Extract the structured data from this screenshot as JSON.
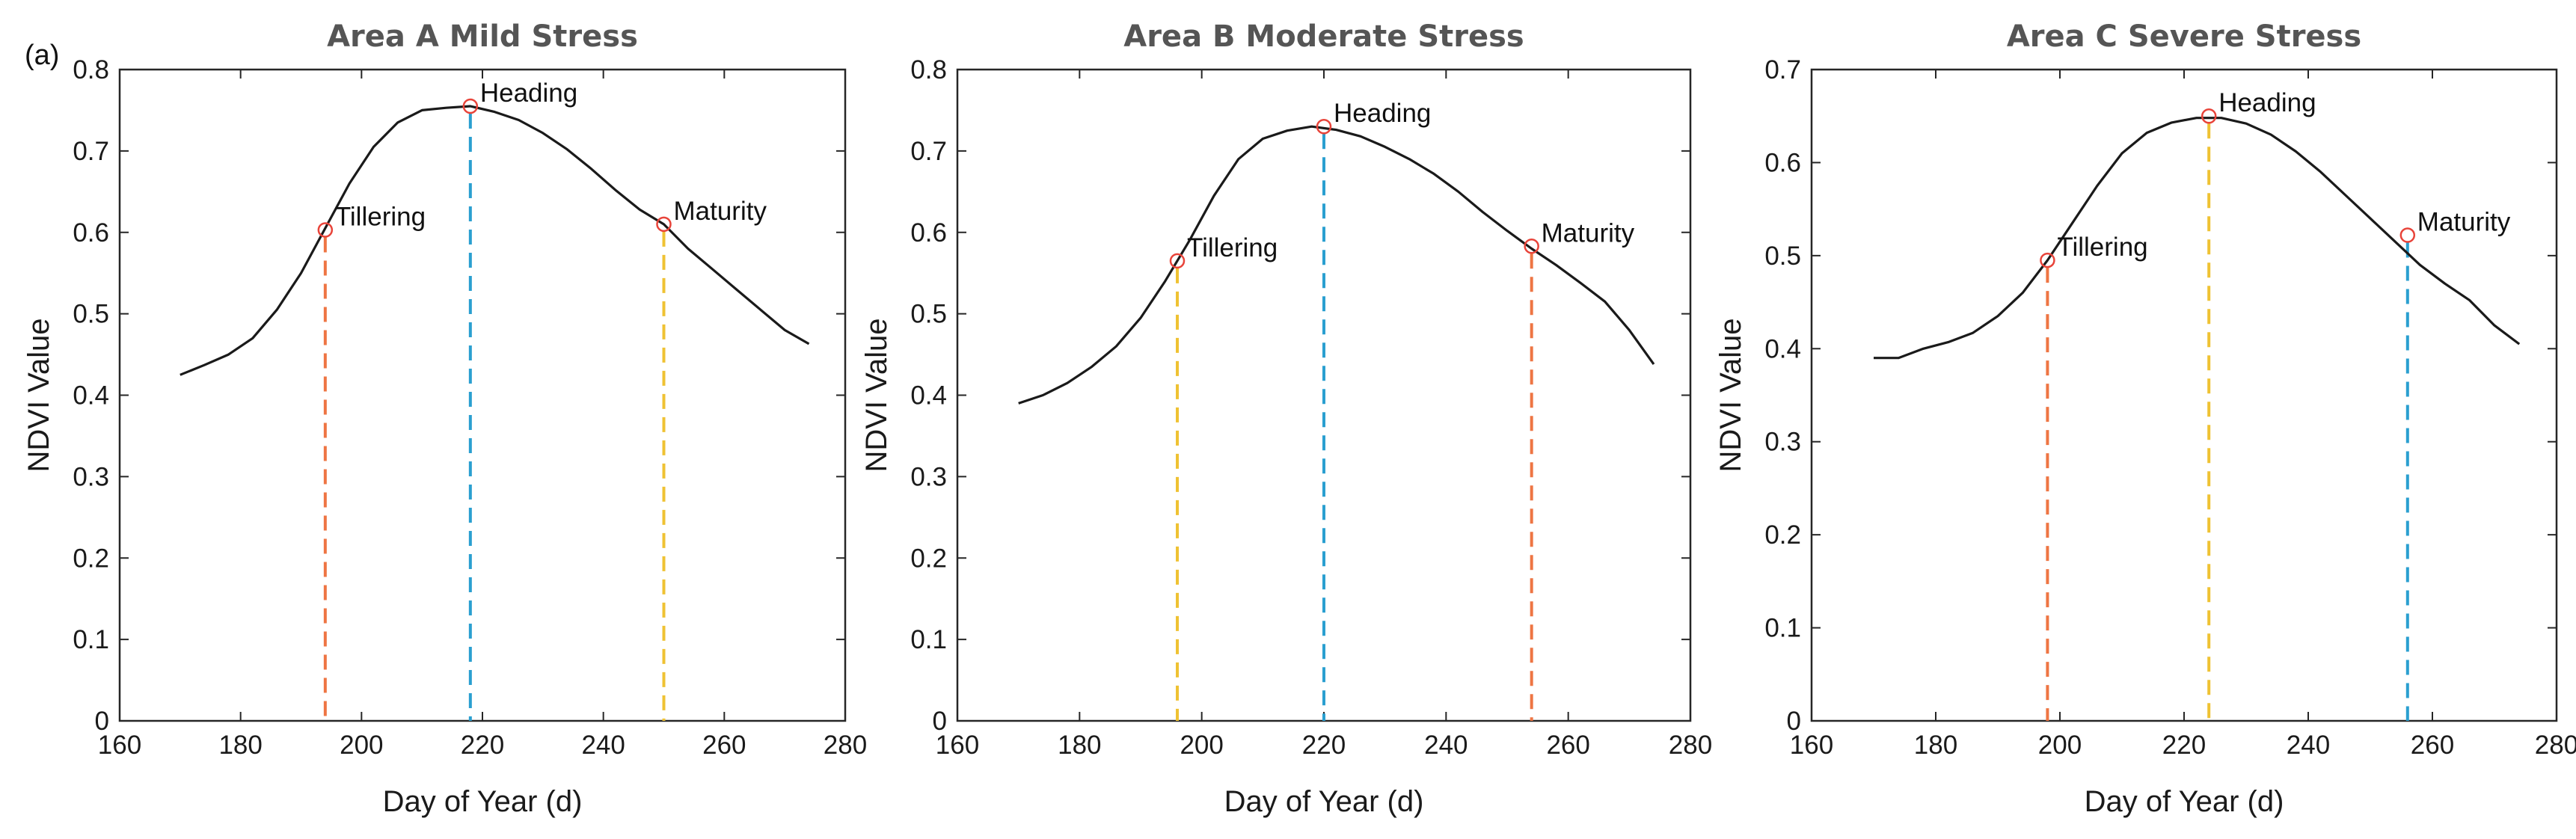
{
  "panel_label": "(a)",
  "colors": {
    "curve": "#1a1a1a",
    "marker": "#e8443a",
    "orange": "#ee7543",
    "blue": "#2a9fd0",
    "yellow": "#efc233"
  },
  "chart_data": [
    {
      "type": "line",
      "title": "Area A  Mild Stress",
      "xlabel": "Day of Year (d)",
      "ylabel": "NDVI Value",
      "xlim": [
        160,
        280
      ],
      "ylim": [
        0,
        0.8
      ],
      "xticks": [
        160,
        180,
        200,
        220,
        240,
        260,
        280
      ],
      "yticks": [
        0,
        0.1,
        0.2,
        0.3,
        0.4,
        0.5,
        0.6,
        0.7,
        0.8
      ],
      "series": [
        {
          "name": "NDVI",
          "x": [
            170,
            174,
            178,
            182,
            186,
            190,
            194,
            198,
            202,
            206,
            210,
            214,
            218,
            222,
            226,
            230,
            234,
            238,
            242,
            246,
            250,
            254,
            258,
            262,
            266,
            270,
            274
          ],
          "y": [
            0.425,
            0.437,
            0.45,
            0.47,
            0.505,
            0.55,
            0.605,
            0.66,
            0.705,
            0.735,
            0.75,
            0.753,
            0.755,
            0.748,
            0.738,
            0.722,
            0.702,
            0.678,
            0.652,
            0.628,
            0.61,
            0.58,
            0.555,
            0.53,
            0.505,
            0.48,
            0.463
          ]
        }
      ],
      "stages": [
        {
          "label": "Tillering",
          "x": 194,
          "y": 0.603,
          "color": "#ee7543"
        },
        {
          "label": "Heading",
          "x": 218,
          "y": 0.755,
          "color": "#2a9fd0"
        },
        {
          "label": "Maturity",
          "x": 250,
          "y": 0.61,
          "color": "#efc233"
        }
      ]
    },
    {
      "type": "line",
      "title": "Area B  Moderate Stress",
      "xlabel": "Day of Year (d)",
      "ylabel": "NDVI Value",
      "xlim": [
        160,
        280
      ],
      "ylim": [
        0,
        0.8
      ],
      "xticks": [
        160,
        180,
        200,
        220,
        240,
        260,
        280
      ],
      "yticks": [
        0,
        0.1,
        0.2,
        0.3,
        0.4,
        0.5,
        0.6,
        0.7,
        0.8
      ],
      "series": [
        {
          "name": "NDVI",
          "x": [
            170,
            174,
            178,
            182,
            186,
            190,
            194,
            198,
            202,
            206,
            210,
            214,
            218,
            222,
            226,
            230,
            234,
            238,
            242,
            246,
            250,
            254,
            258,
            262,
            266,
            270,
            274
          ],
          "y": [
            0.39,
            0.4,
            0.415,
            0.435,
            0.46,
            0.495,
            0.54,
            0.59,
            0.645,
            0.69,
            0.715,
            0.725,
            0.73,
            0.726,
            0.718,
            0.705,
            0.69,
            0.672,
            0.65,
            0.625,
            0.602,
            0.58,
            0.56,
            0.538,
            0.515,
            0.48,
            0.438
          ]
        }
      ],
      "stages": [
        {
          "label": "Tillering",
          "x": 196,
          "y": 0.565,
          "color": "#efc233"
        },
        {
          "label": "Heading",
          "x": 220,
          "y": 0.73,
          "color": "#2a9fd0"
        },
        {
          "label": "Maturity",
          "x": 254,
          "y": 0.583,
          "color": "#ee7543"
        }
      ]
    },
    {
      "type": "line",
      "title": "Area C  Severe Stress",
      "xlabel": "Day of Year (d)",
      "ylabel": "NDVI Value",
      "xlim": [
        160,
        280
      ],
      "ylim": [
        0,
        0.7
      ],
      "xticks": [
        160,
        180,
        200,
        220,
        240,
        260,
        280
      ],
      "yticks": [
        0,
        0.1,
        0.2,
        0.3,
        0.4,
        0.5,
        0.6,
        0.7
      ],
      "series": [
        {
          "name": "NDVI",
          "x": [
            170,
            174,
            178,
            182,
            186,
            190,
            194,
            198,
            202,
            206,
            210,
            214,
            218,
            222,
            226,
            230,
            234,
            238,
            242,
            246,
            250,
            254,
            258,
            262,
            266,
            270,
            274
          ],
          "y": [
            0.39,
            0.39,
            0.4,
            0.407,
            0.417,
            0.435,
            0.46,
            0.495,
            0.535,
            0.575,
            0.61,
            0.632,
            0.643,
            0.648,
            0.648,
            0.642,
            0.63,
            0.612,
            0.59,
            0.565,
            0.54,
            0.515,
            0.49,
            0.47,
            0.452,
            0.425,
            0.405
          ]
        }
      ],
      "stages": [
        {
          "label": "Tillering",
          "x": 198,
          "y": 0.495,
          "color": "#ee7543"
        },
        {
          "label": "Heading",
          "x": 224,
          "y": 0.65,
          "color": "#efc233"
        },
        {
          "label": "Maturity",
          "x": 256,
          "y": 0.522,
          "color": "#2a9fd0"
        }
      ]
    }
  ]
}
